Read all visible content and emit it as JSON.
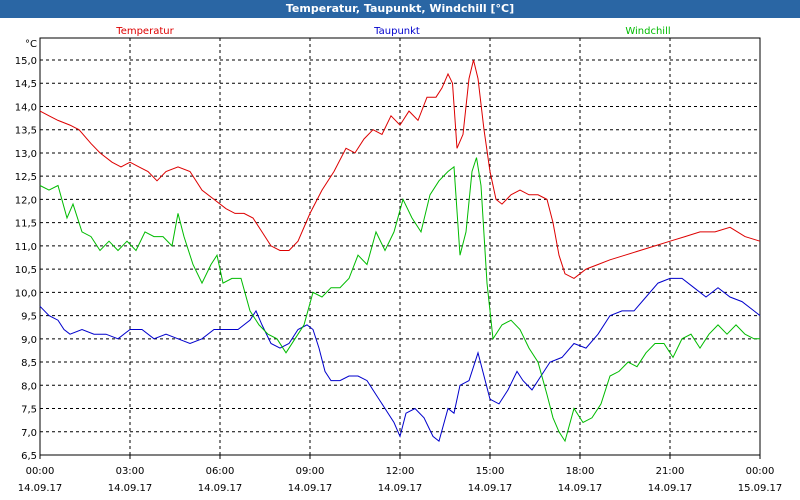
{
  "window": {
    "title": "Temperatur, Taupunkt, Windchill [°C]"
  },
  "chart_data": {
    "type": "line",
    "title": "Temperatur, Taupunkt, Windchill [°C]",
    "yunit": "°C",
    "ylim": [
      6.5,
      15.0
    ],
    "yticks": [
      "6,5",
      "7,0",
      "7,5",
      "8,0",
      "8,5",
      "9,0",
      "9,5",
      "10,0",
      "10,5",
      "11,0",
      "11,5",
      "12,0",
      "12,5",
      "13,0",
      "13,5",
      "14,0",
      "14,5",
      "15,0"
    ],
    "xlim_hours": [
      0,
      24
    ],
    "xticks": [
      {
        "h": 0,
        "time": "00:00",
        "date": "14.09.17"
      },
      {
        "h": 3,
        "time": "03:00",
        "date": "14.09.17"
      },
      {
        "h": 6,
        "time": "06:00",
        "date": "14.09.17"
      },
      {
        "h": 9,
        "time": "09:00",
        "date": "14.09.17"
      },
      {
        "h": 12,
        "time": "12:00",
        "date": "14.09.17"
      },
      {
        "h": 15,
        "time": "15:00",
        "date": "14.09.17"
      },
      {
        "h": 18,
        "time": "18:00",
        "date": "14.09.17"
      },
      {
        "h": 21,
        "time": "21:00",
        "date": "14.09.17"
      },
      {
        "h": 24,
        "time": "00:00",
        "date": "15.09.17"
      }
    ],
    "grid": true,
    "series": [
      {
        "name": "Temperatur",
        "color": "#dd0000",
        "points": [
          [
            0,
            13.9
          ],
          [
            0.3,
            13.8
          ],
          [
            0.6,
            13.7
          ],
          [
            1.0,
            13.6
          ],
          [
            1.3,
            13.5
          ],
          [
            1.7,
            13.2
          ],
          [
            2.0,
            13.0
          ],
          [
            2.4,
            12.8
          ],
          [
            2.7,
            12.7
          ],
          [
            3.0,
            12.8
          ],
          [
            3.3,
            12.7
          ],
          [
            3.6,
            12.6
          ],
          [
            3.9,
            12.4
          ],
          [
            4.2,
            12.6
          ],
          [
            4.6,
            12.7
          ],
          [
            5.0,
            12.6
          ],
          [
            5.4,
            12.2
          ],
          [
            5.8,
            12.0
          ],
          [
            6.2,
            11.8
          ],
          [
            6.5,
            11.7
          ],
          [
            6.8,
            11.7
          ],
          [
            7.1,
            11.6
          ],
          [
            7.4,
            11.3
          ],
          [
            7.7,
            11.0
          ],
          [
            8.0,
            10.9
          ],
          [
            8.3,
            10.9
          ],
          [
            8.6,
            11.1
          ],
          [
            9.0,
            11.7
          ],
          [
            9.4,
            12.2
          ],
          [
            9.8,
            12.6
          ],
          [
            10.2,
            13.1
          ],
          [
            10.5,
            13.0
          ],
          [
            10.8,
            13.3
          ],
          [
            11.1,
            13.5
          ],
          [
            11.4,
            13.4
          ],
          [
            11.7,
            13.8
          ],
          [
            12.0,
            13.6
          ],
          [
            12.3,
            13.9
          ],
          [
            12.6,
            13.7
          ],
          [
            12.9,
            14.2
          ],
          [
            13.2,
            14.2
          ],
          [
            13.4,
            14.4
          ],
          [
            13.6,
            14.7
          ],
          [
            13.75,
            14.5
          ],
          [
            13.9,
            13.1
          ],
          [
            14.1,
            13.4
          ],
          [
            14.3,
            14.6
          ],
          [
            14.45,
            15.0
          ],
          [
            14.6,
            14.6
          ],
          [
            14.8,
            13.5
          ],
          [
            15.0,
            12.6
          ],
          [
            15.2,
            12.0
          ],
          [
            15.4,
            11.9
          ],
          [
            15.7,
            12.1
          ],
          [
            16.0,
            12.2
          ],
          [
            16.3,
            12.1
          ],
          [
            16.6,
            12.1
          ],
          [
            16.9,
            12.0
          ],
          [
            17.1,
            11.5
          ],
          [
            17.3,
            10.8
          ],
          [
            17.5,
            10.4
          ],
          [
            17.8,
            10.3
          ],
          [
            18.2,
            10.5
          ],
          [
            18.6,
            10.6
          ],
          [
            19.0,
            10.7
          ],
          [
            19.5,
            10.8
          ],
          [
            20.0,
            10.9
          ],
          [
            20.5,
            11.0
          ],
          [
            21.0,
            11.1
          ],
          [
            21.5,
            11.2
          ],
          [
            22.0,
            11.3
          ],
          [
            22.5,
            11.3
          ],
          [
            23.0,
            11.4
          ],
          [
            23.5,
            11.2
          ],
          [
            24.0,
            11.1
          ]
        ]
      },
      {
        "name": "Taupunkt",
        "color": "#0000cc",
        "points": [
          [
            0,
            9.7
          ],
          [
            0.3,
            9.5
          ],
          [
            0.6,
            9.4
          ],
          [
            0.8,
            9.2
          ],
          [
            1.0,
            9.1
          ],
          [
            1.4,
            9.2
          ],
          [
            1.8,
            9.1
          ],
          [
            2.2,
            9.1
          ],
          [
            2.6,
            9.0
          ],
          [
            3.0,
            9.2
          ],
          [
            3.4,
            9.2
          ],
          [
            3.8,
            9.0
          ],
          [
            4.2,
            9.1
          ],
          [
            4.6,
            9.0
          ],
          [
            5.0,
            8.9
          ],
          [
            5.4,
            9.0
          ],
          [
            5.8,
            9.2
          ],
          [
            6.2,
            9.2
          ],
          [
            6.6,
            9.2
          ],
          [
            7.0,
            9.4
          ],
          [
            7.2,
            9.6
          ],
          [
            7.4,
            9.3
          ],
          [
            7.7,
            8.9
          ],
          [
            8.0,
            8.8
          ],
          [
            8.3,
            8.9
          ],
          [
            8.6,
            9.2
          ],
          [
            8.9,
            9.3
          ],
          [
            9.1,
            9.2
          ],
          [
            9.3,
            8.8
          ],
          [
            9.5,
            8.3
          ],
          [
            9.7,
            8.1
          ],
          [
            10.0,
            8.1
          ],
          [
            10.3,
            8.2
          ],
          [
            10.6,
            8.2
          ],
          [
            10.9,
            8.1
          ],
          [
            11.2,
            7.8
          ],
          [
            11.5,
            7.5
          ],
          [
            11.8,
            7.2
          ],
          [
            12.0,
            6.9
          ],
          [
            12.2,
            7.4
          ],
          [
            12.5,
            7.5
          ],
          [
            12.8,
            7.3
          ],
          [
            13.1,
            6.9
          ],
          [
            13.3,
            6.8
          ],
          [
            13.6,
            7.5
          ],
          [
            13.8,
            7.4
          ],
          [
            14.0,
            8.0
          ],
          [
            14.3,
            8.1
          ],
          [
            14.6,
            8.7
          ],
          [
            14.8,
            8.2
          ],
          [
            15.0,
            7.7
          ],
          [
            15.3,
            7.6
          ],
          [
            15.6,
            7.9
          ],
          [
            15.9,
            8.3
          ],
          [
            16.1,
            8.1
          ],
          [
            16.4,
            7.9
          ],
          [
            16.7,
            8.2
          ],
          [
            17.0,
            8.5
          ],
          [
            17.4,
            8.6
          ],
          [
            17.8,
            8.9
          ],
          [
            18.2,
            8.8
          ],
          [
            18.6,
            9.1
          ],
          [
            19.0,
            9.5
          ],
          [
            19.4,
            9.6
          ],
          [
            19.8,
            9.6
          ],
          [
            20.2,
            9.9
          ],
          [
            20.6,
            10.2
          ],
          [
            21.0,
            10.3
          ],
          [
            21.4,
            10.3
          ],
          [
            21.8,
            10.1
          ],
          [
            22.2,
            9.9
          ],
          [
            22.6,
            10.1
          ],
          [
            23.0,
            9.9
          ],
          [
            23.4,
            9.8
          ],
          [
            23.8,
            9.6
          ],
          [
            24.0,
            9.5
          ]
        ]
      },
      {
        "name": "Windchill",
        "color": "#00bb00",
        "points": [
          [
            0,
            12.3
          ],
          [
            0.3,
            12.2
          ],
          [
            0.6,
            12.3
          ],
          [
            0.9,
            11.6
          ],
          [
            1.1,
            11.9
          ],
          [
            1.4,
            11.3
          ],
          [
            1.7,
            11.2
          ],
          [
            2.0,
            10.9
          ],
          [
            2.3,
            11.1
          ],
          [
            2.6,
            10.9
          ],
          [
            2.9,
            11.1
          ],
          [
            3.2,
            10.9
          ],
          [
            3.5,
            11.3
          ],
          [
            3.8,
            11.2
          ],
          [
            4.1,
            11.2
          ],
          [
            4.4,
            11.0
          ],
          [
            4.6,
            11.7
          ],
          [
            4.8,
            11.2
          ],
          [
            5.1,
            10.6
          ],
          [
            5.4,
            10.2
          ],
          [
            5.7,
            10.6
          ],
          [
            5.9,
            10.8
          ],
          [
            6.1,
            10.2
          ],
          [
            6.4,
            10.3
          ],
          [
            6.7,
            10.3
          ],
          [
            7.0,
            9.6
          ],
          [
            7.3,
            9.3
          ],
          [
            7.6,
            9.1
          ],
          [
            7.9,
            9.0
          ],
          [
            8.2,
            8.7
          ],
          [
            8.5,
            9.0
          ],
          [
            8.8,
            9.3
          ],
          [
            9.1,
            10.0
          ],
          [
            9.4,
            9.9
          ],
          [
            9.7,
            10.1
          ],
          [
            10.0,
            10.1
          ],
          [
            10.3,
            10.3
          ],
          [
            10.6,
            10.8
          ],
          [
            10.9,
            10.6
          ],
          [
            11.2,
            11.3
          ],
          [
            11.5,
            10.9
          ],
          [
            11.8,
            11.3
          ],
          [
            12.1,
            12.0
          ],
          [
            12.4,
            11.6
          ],
          [
            12.7,
            11.3
          ],
          [
            13.0,
            12.1
          ],
          [
            13.3,
            12.4
          ],
          [
            13.6,
            12.6
          ],
          [
            13.8,
            12.7
          ],
          [
            14.0,
            10.8
          ],
          [
            14.2,
            11.3
          ],
          [
            14.4,
            12.6
          ],
          [
            14.55,
            12.9
          ],
          [
            14.7,
            12.3
          ],
          [
            14.9,
            10.2
          ],
          [
            15.1,
            9.0
          ],
          [
            15.4,
            9.3
          ],
          [
            15.7,
            9.4
          ],
          [
            16.0,
            9.2
          ],
          [
            16.3,
            8.8
          ],
          [
            16.6,
            8.5
          ],
          [
            16.9,
            7.8
          ],
          [
            17.1,
            7.3
          ],
          [
            17.3,
            7.0
          ],
          [
            17.5,
            6.8
          ],
          [
            17.8,
            7.5
          ],
          [
            18.1,
            7.2
          ],
          [
            18.4,
            7.3
          ],
          [
            18.7,
            7.6
          ],
          [
            19.0,
            8.2
          ],
          [
            19.3,
            8.3
          ],
          [
            19.6,
            8.5
          ],
          [
            19.9,
            8.4
          ],
          [
            20.2,
            8.7
          ],
          [
            20.5,
            8.9
          ],
          [
            20.8,
            8.9
          ],
          [
            21.1,
            8.6
          ],
          [
            21.4,
            9.0
          ],
          [
            21.7,
            9.1
          ],
          [
            22.0,
            8.8
          ],
          [
            22.3,
            9.1
          ],
          [
            22.6,
            9.3
          ],
          [
            22.9,
            9.1
          ],
          [
            23.2,
            9.3
          ],
          [
            23.5,
            9.1
          ],
          [
            23.8,
            9.0
          ],
          [
            24.0,
            9.0
          ]
        ]
      }
    ]
  }
}
